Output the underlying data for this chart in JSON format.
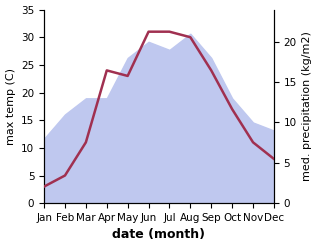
{
  "months": [
    "Jan",
    "Feb",
    "Mar",
    "Apr",
    "May",
    "Jun",
    "Jul",
    "Aug",
    "Sep",
    "Oct",
    "Nov",
    "Dec"
  ],
  "temperature": [
    3,
    5,
    11,
    24,
    23,
    31,
    31,
    30,
    24,
    17,
    11,
    8
  ],
  "precipitation": [
    8,
    11,
    13,
    13,
    18,
    20,
    19,
    21,
    18,
    13,
    10,
    9
  ],
  "temp_color": "#a03050",
  "precip_fill_color": "#bfc8ef",
  "background_color": "#ffffff",
  "xlabel": "date (month)",
  "ylabel_left": "max temp (C)",
  "ylabel_right": "med. precipitation (kg/m2)",
  "ylim_left": [
    0,
    35
  ],
  "ylim_right": [
    0,
    24
  ],
  "yticks_left": [
    0,
    5,
    10,
    15,
    20,
    25,
    30,
    35
  ],
  "yticks_right": [
    0,
    5,
    10,
    15,
    20
  ],
  "line_width": 1.8,
  "label_fontsize": 8,
  "tick_fontsize": 7.5,
  "xlabel_fontsize": 9
}
